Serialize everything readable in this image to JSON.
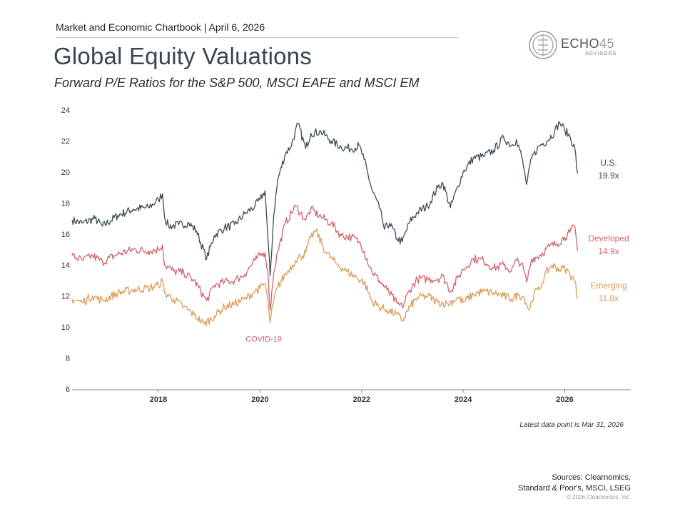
{
  "header": {
    "kicker": "Market and Economic Chartbook | April 6, 2026",
    "title": "Global Equity Valuations",
    "subtitle": "Forward P/E Ratios for the S&P 500, MSCI EAFE and MSCI EM"
  },
  "logo": {
    "word": "ECHO",
    "number": "45",
    "sub": "ADVISORS"
  },
  "chart_data": {
    "type": "line",
    "title": "",
    "xlabel": "",
    "ylabel": "",
    "xlim": [
      2016.3,
      2027.3
    ],
    "ylim": [
      6,
      24
    ],
    "yticks": [
      6,
      8,
      10,
      12,
      14,
      16,
      18,
      20,
      22,
      24
    ],
    "xticks": [
      2018,
      2020,
      2022,
      2024,
      2026
    ],
    "grid": false,
    "legend": "none",
    "series": [
      {
        "name": "U.S.",
        "value_label": "19.9x",
        "color": "#3d4c5a",
        "points": [
          [
            2016.3,
            16.9
          ],
          [
            2016.5,
            16.7
          ],
          [
            2016.75,
            17.0
          ],
          [
            2016.9,
            16.5
          ],
          [
            2017.2,
            17.2
          ],
          [
            2017.5,
            17.6
          ],
          [
            2017.8,
            17.7
          ],
          [
            2018.0,
            18.2
          ],
          [
            2018.08,
            18.6
          ],
          [
            2018.12,
            17.1
          ],
          [
            2018.2,
            16.5
          ],
          [
            2018.4,
            16.6
          ],
          [
            2018.6,
            16.7
          ],
          [
            2018.75,
            16.2
          ],
          [
            2018.95,
            14.4
          ],
          [
            2019.1,
            15.9
          ],
          [
            2019.3,
            16.4
          ],
          [
            2019.5,
            16.6
          ],
          [
            2019.7,
            17.3
          ],
          [
            2019.9,
            17.8
          ],
          [
            2020.0,
            18.2
          ],
          [
            2020.1,
            18.8
          ],
          [
            2020.15,
            16.0
          ],
          [
            2020.2,
            13.3
          ],
          [
            2020.27,
            17.2
          ],
          [
            2020.35,
            19.5
          ],
          [
            2020.5,
            21.2
          ],
          [
            2020.6,
            21.6
          ],
          [
            2020.75,
            23.1
          ],
          [
            2020.9,
            21.5
          ],
          [
            2021.0,
            22.5
          ],
          [
            2021.2,
            22.6
          ],
          [
            2021.4,
            22.0
          ],
          [
            2021.6,
            21.6
          ],
          [
            2021.8,
            21.5
          ],
          [
            2021.95,
            21.7
          ],
          [
            2022.05,
            20.8
          ],
          [
            2022.2,
            18.9
          ],
          [
            2022.35,
            17.7
          ],
          [
            2022.45,
            16.3
          ],
          [
            2022.55,
            16.7
          ],
          [
            2022.7,
            15.7
          ],
          [
            2022.8,
            15.5
          ],
          [
            2022.95,
            16.8
          ],
          [
            2023.1,
            17.4
          ],
          [
            2023.3,
            17.8
          ],
          [
            2023.5,
            19.0
          ],
          [
            2023.6,
            19.3
          ],
          [
            2023.75,
            17.7
          ],
          [
            2023.9,
            19.1
          ],
          [
            2024.0,
            20.0
          ],
          [
            2024.2,
            20.9
          ],
          [
            2024.4,
            21.0
          ],
          [
            2024.6,
            21.4
          ],
          [
            2024.8,
            22.2
          ],
          [
            2024.95,
            21.7
          ],
          [
            2025.05,
            22.1
          ],
          [
            2025.15,
            21.0
          ],
          [
            2025.25,
            19.2
          ],
          [
            2025.35,
            20.9
          ],
          [
            2025.5,
            21.7
          ],
          [
            2025.65,
            22.0
          ],
          [
            2025.8,
            22.6
          ],
          [
            2025.9,
            23.2
          ],
          [
            2026.0,
            22.7
          ],
          [
            2026.1,
            22.3
          ],
          [
            2026.2,
            21.5
          ],
          [
            2026.25,
            19.9
          ]
        ]
      },
      {
        "name": "Developed",
        "value_label": "14.9x",
        "color": "#d0636b",
        "points": [
          [
            2016.3,
            14.6
          ],
          [
            2016.5,
            14.3
          ],
          [
            2016.7,
            14.6
          ],
          [
            2016.9,
            14.2
          ],
          [
            2017.2,
            14.7
          ],
          [
            2017.5,
            15.0
          ],
          [
            2017.8,
            14.9
          ],
          [
            2018.0,
            15.0
          ],
          [
            2018.08,
            15.3
          ],
          [
            2018.12,
            14.0
          ],
          [
            2018.3,
            13.6
          ],
          [
            2018.5,
            13.5
          ],
          [
            2018.7,
            13.0
          ],
          [
            2018.95,
            11.7
          ],
          [
            2019.1,
            12.7
          ],
          [
            2019.3,
            12.9
          ],
          [
            2019.5,
            13.0
          ],
          [
            2019.7,
            13.4
          ],
          [
            2019.9,
            14.3
          ],
          [
            2020.0,
            14.6
          ],
          [
            2020.1,
            14.8
          ],
          [
            2020.15,
            13.7
          ],
          [
            2020.2,
            11.1
          ],
          [
            2020.27,
            13.5
          ],
          [
            2020.35,
            14.9
          ],
          [
            2020.5,
            16.7
          ],
          [
            2020.7,
            17.8
          ],
          [
            2020.9,
            16.9
          ],
          [
            2021.0,
            17.6
          ],
          [
            2021.2,
            17.1
          ],
          [
            2021.4,
            16.7
          ],
          [
            2021.6,
            15.9
          ],
          [
            2021.8,
            15.8
          ],
          [
            2021.95,
            15.5
          ],
          [
            2022.05,
            14.9
          ],
          [
            2022.2,
            13.6
          ],
          [
            2022.35,
            13.0
          ],
          [
            2022.5,
            12.4
          ],
          [
            2022.7,
            11.5
          ],
          [
            2022.8,
            11.3
          ],
          [
            2022.95,
            12.4
          ],
          [
            2023.1,
            13.1
          ],
          [
            2023.3,
            13.1
          ],
          [
            2023.5,
            13.1
          ],
          [
            2023.6,
            13.3
          ],
          [
            2023.75,
            12.3
          ],
          [
            2023.9,
            13.2
          ],
          [
            2024.0,
            13.7
          ],
          [
            2024.2,
            14.4
          ],
          [
            2024.4,
            14.3
          ],
          [
            2024.6,
            13.8
          ],
          [
            2024.8,
            14.0
          ],
          [
            2024.95,
            13.6
          ],
          [
            2025.05,
            14.3
          ],
          [
            2025.15,
            14.1
          ],
          [
            2025.25,
            12.9
          ],
          [
            2025.35,
            14.4
          ],
          [
            2025.5,
            14.6
          ],
          [
            2025.7,
            15.2
          ],
          [
            2025.85,
            15.4
          ],
          [
            2026.0,
            15.8
          ],
          [
            2026.1,
            16.1
          ],
          [
            2026.2,
            16.5
          ],
          [
            2026.25,
            14.9
          ]
        ]
      },
      {
        "name": "Emerging",
        "value_label": "11.8x",
        "color": "#dc9a54",
        "points": [
          [
            2016.3,
            11.8
          ],
          [
            2016.5,
            11.6
          ],
          [
            2016.7,
            12.0
          ],
          [
            2016.9,
            11.7
          ],
          [
            2017.2,
            12.2
          ],
          [
            2017.5,
            12.4
          ],
          [
            2017.8,
            12.5
          ],
          [
            2018.0,
            12.7
          ],
          [
            2018.08,
            13.0
          ],
          [
            2018.12,
            12.2
          ],
          [
            2018.3,
            11.8
          ],
          [
            2018.5,
            11.3
          ],
          [
            2018.7,
            10.8
          ],
          [
            2018.9,
            10.2
          ],
          [
            2019.1,
            10.7
          ],
          [
            2019.3,
            11.3
          ],
          [
            2019.5,
            11.5
          ],
          [
            2019.7,
            11.8
          ],
          [
            2019.9,
            12.3
          ],
          [
            2020.0,
            12.5
          ],
          [
            2020.1,
            12.8
          ],
          [
            2020.15,
            11.8
          ],
          [
            2020.2,
            10.3
          ],
          [
            2020.27,
            11.7
          ],
          [
            2020.35,
            12.6
          ],
          [
            2020.5,
            13.4
          ],
          [
            2020.7,
            14.3
          ],
          [
            2020.9,
            14.8
          ],
          [
            2021.0,
            15.8
          ],
          [
            2021.1,
            16.2
          ],
          [
            2021.3,
            14.8
          ],
          [
            2021.5,
            14.1
          ],
          [
            2021.7,
            13.6
          ],
          [
            2021.9,
            13.2
          ],
          [
            2022.05,
            12.9
          ],
          [
            2022.2,
            11.7
          ],
          [
            2022.35,
            11.3
          ],
          [
            2022.5,
            11.1
          ],
          [
            2022.7,
            10.8
          ],
          [
            2022.8,
            10.4
          ],
          [
            2022.95,
            11.3
          ],
          [
            2023.1,
            11.9
          ],
          [
            2023.3,
            12.0
          ],
          [
            2023.5,
            11.6
          ],
          [
            2023.7,
            11.5
          ],
          [
            2023.9,
            11.9
          ],
          [
            2024.0,
            11.6
          ],
          [
            2024.2,
            12.1
          ],
          [
            2024.4,
            12.3
          ],
          [
            2024.6,
            12.2
          ],
          [
            2024.8,
            12.0
          ],
          [
            2024.95,
            11.8
          ],
          [
            2025.1,
            12.1
          ],
          [
            2025.2,
            11.9
          ],
          [
            2025.3,
            11.1
          ],
          [
            2025.4,
            12.2
          ],
          [
            2025.5,
            12.4
          ],
          [
            2025.6,
            13.3
          ],
          [
            2025.75,
            14.0
          ],
          [
            2025.9,
            13.7
          ],
          [
            2026.0,
            13.8
          ],
          [
            2026.1,
            13.4
          ],
          [
            2026.2,
            13.0
          ],
          [
            2026.25,
            11.8
          ]
        ]
      }
    ],
    "annotations": [
      {
        "text": "COVID-19",
        "x": 2020.2,
        "y": 9.2,
        "color": "#d0636b"
      }
    ],
    "note": "Latest data point is Mar 31, 2026"
  },
  "footer": {
    "sources_line1": "Sources: Clearnomics,",
    "sources_line2": "Standard & Poor's, MSCI, LSEG",
    "copyright": "© 2026 Clearnomics, Inc."
  }
}
